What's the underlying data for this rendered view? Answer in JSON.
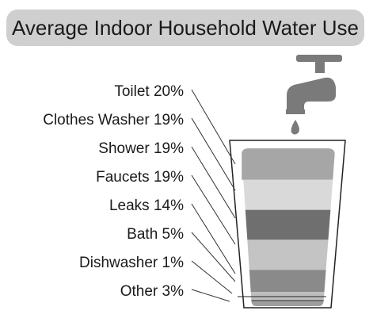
{
  "chart_data": {
    "type": "bar",
    "title": "Average Indoor Household Water Use",
    "categories": [
      "Toilet",
      "Clothes Washer",
      "Shower",
      "Faucets",
      "Leaks",
      "Bath",
      "Dishwasher",
      "Other"
    ],
    "values": [
      20,
      19,
      19,
      19,
      14,
      5,
      1,
      3
    ],
    "labels": [
      "Toilet 20%",
      "Clothes Washer 19%",
      "Shower 19%",
      "Faucets 19%",
      "Leaks 14%",
      "Bath 5%",
      "Dishwasher 1%",
      "Other 3%"
    ],
    "unit": "%",
    "colors": [
      "#a6a6a6",
      "#d9d9d9",
      "#6f6f6f",
      "#c4c4c4",
      "#8a8a8a",
      "#bdbdbd",
      "#6f6f6f",
      "#9e9e9e"
    ]
  },
  "graphic": {
    "icon": "faucet-icon",
    "container": "water-glass"
  }
}
